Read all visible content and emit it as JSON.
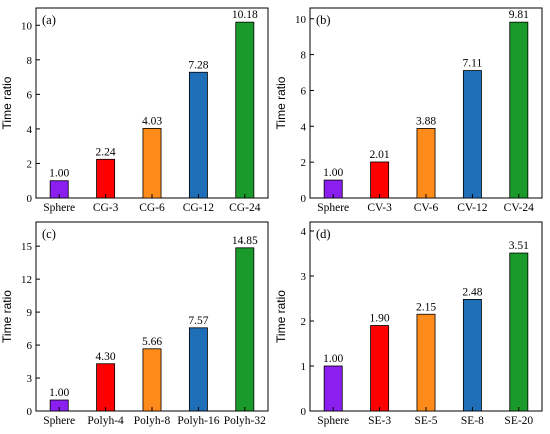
{
  "chart_data": [
    {
      "type": "bar",
      "panel_label": "(a)",
      "ylabel": "Time ratio",
      "ylim": [
        0,
        11
      ],
      "yticks": [
        "0",
        "2",
        "4",
        "6",
        "8",
        "10"
      ],
      "categories": [
        "Sphere",
        "CG-3",
        "CG-6",
        "CG-12",
        "CG-24"
      ],
      "values": [
        1.0,
        2.24,
        4.03,
        7.28,
        10.18
      ],
      "value_labels": [
        "1.00",
        "2.24",
        "4.03",
        "7.28",
        "10.18"
      ],
      "colors": [
        "#8a1ff0",
        "#ff0000",
        "#ff8c1a",
        "#1f6fb8",
        "#1a9a2a"
      ]
    },
    {
      "type": "bar",
      "panel_label": "(b)",
      "ylabel": "Time ratio",
      "ylim": [
        0,
        10.6
      ],
      "yticks": [
        "0",
        "2",
        "4",
        "6",
        "8",
        "10"
      ],
      "categories": [
        "Sphere",
        "CV-3",
        "CV-6",
        "CV-12",
        "CV-24"
      ],
      "values": [
        1.0,
        2.01,
        3.88,
        7.11,
        9.81
      ],
      "value_labels": [
        "1.00",
        "2.01",
        "3.88",
        "7.11",
        "9.81"
      ],
      "colors": [
        "#8a1ff0",
        "#ff0000",
        "#ff8c1a",
        "#1f6fb8",
        "#1a9a2a"
      ]
    },
    {
      "type": "bar",
      "panel_label": "(c)",
      "ylabel": "Time ratio",
      "ylim": [
        0,
        17.2
      ],
      "yticks": [
        "0",
        "3",
        "6",
        "9",
        "12",
        "15"
      ],
      "categories": [
        "Sphere",
        "Polyh-4",
        "Polyh-8",
        "Polyh-16",
        "Polyh-32"
      ],
      "values": [
        1.0,
        4.3,
        5.66,
        7.57,
        14.85
      ],
      "value_labels": [
        "1.00",
        "4.30",
        "5.66",
        "7.57",
        "14.85"
      ],
      "colors": [
        "#8a1ff0",
        "#ff0000",
        "#ff8c1a",
        "#1f6fb8",
        "#1a9a2a"
      ]
    },
    {
      "type": "bar",
      "panel_label": "(d)",
      "ylabel": "Time ratio",
      "ylim": [
        0,
        4.2
      ],
      "yticks": [
        "0",
        "1",
        "2",
        "3",
        "4"
      ],
      "categories": [
        "Sphere",
        "SE-3",
        "SE-5",
        "SE-8",
        "SE-20"
      ],
      "values": [
        1.0,
        1.9,
        2.15,
        2.48,
        3.51
      ],
      "value_labels": [
        "1.00",
        "1.90",
        "2.15",
        "2.48",
        "3.51"
      ],
      "colors": [
        "#8a1ff0",
        "#ff0000",
        "#ff8c1a",
        "#1f6fb8",
        "#1a9a2a"
      ]
    }
  ]
}
